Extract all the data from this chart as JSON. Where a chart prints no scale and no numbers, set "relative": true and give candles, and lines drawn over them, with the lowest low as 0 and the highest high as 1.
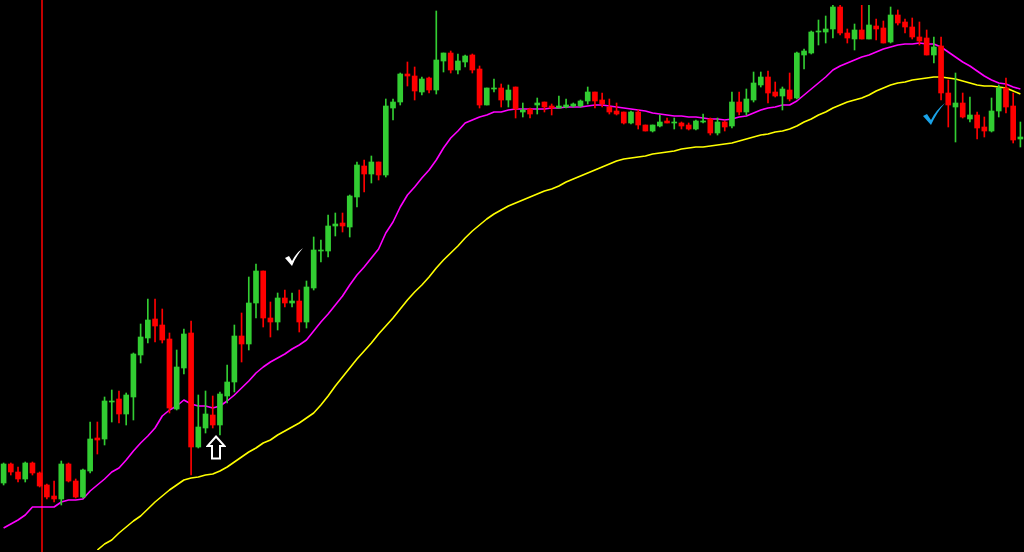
{
  "chart_data": {
    "type": "candlestick",
    "relative": true,
    "categories": [
      null,
      null,
      null,
      null,
      null,
      null,
      null,
      null,
      null,
      null,
      null,
      null,
      null,
      null,
      null,
      null,
      null,
      null,
      null,
      null,
      null,
      null,
      null,
      null,
      null,
      null,
      null,
      null,
      null,
      null,
      null,
      null,
      null,
      null,
      null,
      null,
      null,
      null,
      null,
      null,
      null,
      null,
      null,
      null,
      null,
      null,
      null,
      null,
      null,
      null,
      null,
      null,
      null,
      null,
      null,
      null,
      null,
      null,
      null,
      null,
      null,
      null,
      null,
      null,
      null,
      null,
      null,
      null,
      null,
      null,
      null,
      null,
      null,
      null,
      null,
      null,
      null,
      null,
      null,
      null,
      null,
      null,
      null,
      null,
      null,
      null,
      null,
      null,
      null,
      null,
      null,
      null,
      null,
      null,
      null,
      null,
      null,
      null,
      null,
      null,
      null,
      null,
      null,
      null,
      null,
      null,
      null,
      null,
      null,
      null,
      null,
      null,
      null,
      null,
      null,
      null,
      null,
      null,
      null,
      null,
      null,
      null,
      null,
      null,
      null,
      null,
      null,
      null,
      null,
      null,
      null,
      null,
      null,
      null,
      null,
      null,
      null,
      null,
      null,
      null,
      null,
      null
    ],
    "ohlc": [
      [
        0.044,
        0.084,
        0.04,
        0.082
      ],
      [
        0.082,
        0.084,
        0.06,
        0.066
      ],
      [
        0.066,
        0.076,
        0.046,
        0.052
      ],
      [
        0.052,
        0.086,
        0.046,
        0.084
      ],
      [
        0.084,
        0.086,
        0.06,
        0.064
      ],
      [
        0.064,
        0.066,
        0.036,
        0.038
      ],
      [
        0.04,
        0.042,
        0.012,
        0.016
      ],
      [
        0.018,
        0.048,
        0.006,
        0.012
      ],
      [
        0.012,
        0.088,
        0,
        0.082
      ],
      [
        0.082,
        0.084,
        0.046,
        0.048
      ],
      [
        0.048,
        0.052,
        0.014,
        0.016
      ],
      [
        0.016,
        0.072,
        0.014,
        0.07
      ],
      [
        0.068,
        0.166,
        0.064,
        0.132
      ],
      [
        0.134,
        0.166,
        0.102,
        0.13
      ],
      [
        0.132,
        0.216,
        0.12,
        0.208
      ],
      [
        0.206,
        0.23,
        0.166,
        0.208
      ],
      [
        0.212,
        0.228,
        0.164,
        0.182
      ],
      [
        0.182,
        0.224,
        0.16,
        0.22
      ],
      [
        0.216,
        0.304,
        0.17,
        0.302
      ],
      [
        0.3,
        0.362,
        0.284,
        0.336
      ],
      [
        0.334,
        0.412,
        0.324,
        0.37
      ],
      [
        0.372,
        0.412,
        0.326,
        0.358
      ],
      [
        0.36,
        0.392,
        0.324,
        0.33
      ],
      [
        0.332,
        0.344,
        0.184,
        0.194
      ],
      [
        0.192,
        0.31,
        0.19,
        0.276
      ],
      [
        0.274,
        0.352,
        0.262,
        0.342
      ],
      [
        0.344,
        0.368,
        0.06,
        0.116
      ],
      [
        0.116,
        0.22,
        0.114,
        0.156
      ],
      [
        0.154,
        0.228,
        0.144,
        0.182
      ],
      [
        0.18,
        0.218,
        0.154,
        0.16
      ],
      [
        0.16,
        0.226,
        0.14,
        0.222
      ],
      [
        0.218,
        0.28,
        0.204,
        0.246
      ],
      [
        0.246,
        0.36,
        0.226,
        0.338
      ],
      [
        0.338,
        0.384,
        0.286,
        0.322
      ],
      [
        0.322,
        0.456,
        0.31,
        0.404
      ],
      [
        0.404,
        0.482,
        0.374,
        0.468
      ],
      [
        0.468,
        0.468,
        0.356,
        0.374
      ],
      [
        0.374,
        0.406,
        0.336,
        0.366
      ],
      [
        0.366,
        0.424,
        0.35,
        0.414
      ],
      [
        0.414,
        0.43,
        0.396,
        0.404
      ],
      [
        0.404,
        0.424,
        0.396,
        0.408
      ],
      [
        0.408,
        0.43,
        0.346,
        0.366
      ],
      [
        0.366,
        0.448,
        0.354,
        0.436
      ],
      [
        0.434,
        0.536,
        0.43,
        0.51
      ],
      [
        0.508,
        0.53,
        0.486,
        0.51
      ],
      [
        0.508,
        0.58,
        0.496,
        0.558
      ],
      [
        0.558,
        0.584,
        0.538,
        0.562
      ],
      [
        0.564,
        0.584,
        0.546,
        0.558
      ],
      [
        0.556,
        0.62,
        0.536,
        0.618
      ],
      [
        0.616,
        0.686,
        0.596,
        0.68
      ],
      [
        0.678,
        0.69,
        0.626,
        0.662
      ],
      [
        0.662,
        0.698,
        0.644,
        0.686
      ],
      [
        0.686,
        0.686,
        0.65,
        0.66
      ],
      [
        0.66,
        0.812,
        0.656,
        0.798
      ],
      [
        0.794,
        0.812,
        0.77,
        0.806
      ],
      [
        0.806,
        0.864,
        0.8,
        0.862
      ],
      [
        0.862,
        0.886,
        0.838,
        0.858
      ],
      [
        0.858,
        0.876,
        0.81,
        0.828
      ],
      [
        0.826,
        0.856,
        0.82,
        0.852
      ],
      [
        0.854,
        0.856,
        0.824,
        0.83
      ],
      [
        0.83,
        0.988,
        0.822,
        0.89
      ],
      [
        0.888,
        0.904,
        0.866,
        0.904
      ],
      [
        0.904,
        0.908,
        0.864,
        0.87
      ],
      [
        0.87,
        0.902,
        0.862,
        0.888
      ],
      [
        0.886,
        0.9,
        0.876,
        0.898
      ],
      [
        0.9,
        0.902,
        0.864,
        0.87
      ],
      [
        0.872,
        0.878,
        0.794,
        0.8
      ],
      [
        0.8,
        0.834,
        0.8,
        0.834
      ],
      [
        0.832,
        0.852,
        0.826,
        0.834
      ],
      [
        0.834,
        0.842,
        0.796,
        0.81
      ],
      [
        0.81,
        0.84,
        0.796,
        0.83
      ],
      [
        0.836,
        0.836,
        0.774,
        0.792
      ],
      [
        0.786,
        0.804,
        0.776,
        0.79
      ],
      [
        0.792,
        0.794,
        0.774,
        0.782
      ],
      [
        0.8,
        0.814,
        0.782,
        0.804
      ],
      [
        0.806,
        0.806,
        0.786,
        0.796
      ],
      [
        0.798,
        0.802,
        0.78,
        0.794
      ],
      [
        0.794,
        0.818,
        0.794,
        0.798
      ],
      [
        0.796,
        0.812,
        0.794,
        0.8
      ],
      [
        0.798,
        0.804,
        0.796,
        0.802
      ],
      [
        0.798,
        0.81,
        0.796,
        0.808
      ],
      [
        0.808,
        0.836,
        0.802,
        0.826
      ],
      [
        0.826,
        0.826,
        0.794,
        0.808
      ],
      [
        0.81,
        0.824,
        0.796,
        0.802
      ],
      [
        0.796,
        0.812,
        0.782,
        0.786
      ],
      [
        0.788,
        0.804,
        0.78,
        0.782
      ],
      [
        0.786,
        0.786,
        0.762,
        0.764
      ],
      [
        0.764,
        0.788,
        0.762,
        0.786
      ],
      [
        0.786,
        0.79,
        0.752,
        0.76
      ],
      [
        0.76,
        0.76,
        0.748,
        0.748
      ],
      [
        0.748,
        0.76,
        0.746,
        0.76
      ],
      [
        0.758,
        0.78,
        0.756,
        0.766
      ],
      [
        0.768,
        0.774,
        0.764,
        0.764
      ],
      [
        0.764,
        0.774,
        0.752,
        0.766
      ],
      [
        0.764,
        0.766,
        0.752,
        0.758
      ],
      [
        0.76,
        0.764,
        0.75,
        0.752
      ],
      [
        0.752,
        0.77,
        0.75,
        0.768
      ],
      [
        0.766,
        0.782,
        0.764,
        0.768
      ],
      [
        0.772,
        0.774,
        0.74,
        0.744
      ],
      [
        0.744,
        0.774,
        0.74,
        0.766
      ],
      [
        0.766,
        0.768,
        0.748,
        0.756
      ],
      [
        0.758,
        0.826,
        0.754,
        0.806
      ],
      [
        0.806,
        0.826,
        0.78,
        0.786
      ],
      [
        0.786,
        0.832,
        0.78,
        0.812
      ],
      [
        0.81,
        0.866,
        0.806,
        0.844
      ],
      [
        0.84,
        0.866,
        0.836,
        0.856
      ],
      [
        0.856,
        0.868,
        0.804,
        0.824
      ],
      [
        0.826,
        0.846,
        0.816,
        0.818
      ],
      [
        0.818,
        0.836,
        0.79,
        0.832
      ],
      [
        0.83,
        0.864,
        0.808,
        0.812
      ],
      [
        0.814,
        0.906,
        0.812,
        0.904
      ],
      [
        0.9,
        0.912,
        0.872,
        0.908
      ],
      [
        0.904,
        0.948,
        0.902,
        0.946
      ],
      [
        0.946,
        0.97,
        0.92,
        0.948
      ],
      [
        0.946,
        0.978,
        0.924,
        0.952
      ],
      [
        0.952,
        1,
        0.934,
        0.996
      ],
      [
        0.996,
        1,
        0.94,
        0.944
      ],
      [
        0.944,
        0.952,
        0.924,
        0.934
      ],
      [
        0.932,
        0.962,
        0.91,
        0.95
      ],
      [
        0.95,
        1,
        0.932,
        0.932
      ],
      [
        0.932,
        1,
        0.932,
        0.96
      ],
      [
        0.958,
        0.972,
        0.93,
        0.952
      ],
      [
        0.954,
        0.968,
        0.924,
        0.924
      ],
      [
        0.926,
        0.996,
        0.924,
        0.98
      ],
      [
        0.98,
        0.99,
        0.96,
        0.964
      ],
      [
        0.966,
        0.972,
        0.944,
        0.956
      ],
      [
        0.956,
        0.974,
        0.932,
        0.936
      ],
      [
        0.936,
        0.966,
        0.92,
        0.928
      ],
      [
        0.934,
        0.95,
        0.9,
        0.9
      ],
      [
        0.9,
        0.936,
        0.884,
        0.916
      ],
      [
        0.918,
        0.936,
        0.81,
        0.824
      ],
      [
        0.824,
        0.85,
        0.756,
        0.8
      ],
      [
        0.796,
        0.864,
        0.726,
        0.804
      ],
      [
        0.804,
        0.824,
        0.774,
        0.776
      ],
      [
        0.772,
        0.816,
        0.766,
        0.78
      ],
      [
        0.78,
        0.786,
        0.732,
        0.754
      ],
      [
        0.756,
        0.776,
        0.736,
        0.748
      ],
      [
        0.748,
        0.814,
        0.746,
        0.788
      ],
      [
        0.788,
        0.84,
        0.776,
        0.834
      ],
      [
        0.834,
        0.854,
        0.784,
        0.796
      ],
      [
        0.798,
        0.824,
        0.724,
        0.73
      ],
      [
        0.732,
        0.766,
        0.716,
        0.736
      ]
    ],
    "colors": [
      "#32cd32",
      "#ff0000",
      "#ff0000",
      "#32cd32",
      "#ff0000",
      "#ff0000",
      "#ff0000",
      "#ff0000",
      "#32cd32",
      "#ff0000",
      "#ff0000",
      "#32cd32",
      "#32cd32",
      "#ff0000",
      "#32cd32",
      "#32cd32",
      "#ff0000",
      "#32cd32",
      "#32cd32",
      "#32cd32",
      "#32cd32",
      "#ff0000",
      "#ff0000",
      "#ff0000",
      "#32cd32",
      "#32cd32",
      "#ff0000",
      "#32cd32",
      "#32cd32",
      "#ff0000",
      "#32cd32",
      "#32cd32",
      "#32cd32",
      "#ff0000",
      "#32cd32",
      "#32cd32",
      "#ff0000",
      "#ff0000",
      "#32cd32",
      "#ff0000",
      "#32cd32",
      "#ff0000",
      "#32cd32",
      "#32cd32",
      "#32cd32",
      "#32cd32",
      "#32cd32",
      "#ff0000",
      "#32cd32",
      "#32cd32",
      "#ff0000",
      "#32cd32",
      "#ff0000",
      "#32cd32",
      "#32cd32",
      "#32cd32",
      "#ff0000",
      "#ff0000",
      "#32cd32",
      "#ff0000",
      "#32cd32",
      "#32cd32",
      "#ff0000",
      "#32cd32",
      "#32cd32",
      "#ff0000",
      "#ff0000",
      "#32cd32",
      "#32cd32",
      "#ff0000",
      "#32cd32",
      "#ff0000",
      "#32cd32",
      "#ff0000",
      "#32cd32",
      "#ff0000",
      "#ff0000",
      "#32cd32",
      "#32cd32",
      "#32cd32",
      "#32cd32",
      "#32cd32",
      "#ff0000",
      "#ff0000",
      "#ff0000",
      "#ff0000",
      "#ff0000",
      "#32cd32",
      "#ff0000",
      "#ff0000",
      "#32cd32",
      "#32cd32",
      "#ff0000",
      "#32cd32",
      "#ff0000",
      "#ff0000",
      "#32cd32",
      "#32cd32",
      "#ff0000",
      "#32cd32",
      "#ff0000",
      "#32cd32",
      "#ff0000",
      "#32cd32",
      "#32cd32",
      "#32cd32",
      "#ff0000",
      "#ff0000",
      "#32cd32",
      "#ff0000",
      "#32cd32",
      "#32cd32",
      "#32cd32",
      "#32cd32",
      "#32cd32",
      "#32cd32",
      "#ff0000",
      "#ff0000",
      "#32cd32",
      "#ff0000",
      "#32cd32",
      "#ff0000",
      "#ff0000",
      "#32cd32",
      "#ff0000",
      "#ff0000",
      "#ff0000",
      "#ff0000",
      "#ff0000",
      "#32cd32",
      "#ff0000",
      "#ff0000",
      "#32cd32",
      "#ff0000",
      "#32cd32",
      "#ff0000",
      "#ff0000",
      "#32cd32",
      "#32cd32",
      "#ff0000",
      "#ff0000",
      "#32cd32"
    ],
    "series": [
      {
        "type": "line",
        "color": "#ff00ff",
        "values": [
          -0.046,
          -0.038,
          -0.03,
          -0.02,
          -0.004,
          -0.004,
          -0.004,
          -0.004,
          0.006,
          0.01,
          0.01,
          0.012,
          0.028,
          0.04,
          0.052,
          0.066,
          0.074,
          0.09,
          0.108,
          0.124,
          0.138,
          0.154,
          0.178,
          0.19,
          0.198,
          0.21,
          0.202,
          0.198,
          0.198,
          0.194,
          0.198,
          0.208,
          0.22,
          0.234,
          0.248,
          0.264,
          0.276,
          0.286,
          0.294,
          0.302,
          0.312,
          0.32,
          0.33,
          0.348,
          0.366,
          0.382,
          0.4,
          0.418,
          0.44,
          0.46,
          0.476,
          0.494,
          0.512,
          0.544,
          0.566,
          0.596,
          0.62,
          0.636,
          0.654,
          0.67,
          0.69,
          0.714,
          0.734,
          0.748,
          0.764,
          0.77,
          0.776,
          0.78,
          0.786,
          0.786,
          0.79,
          0.792,
          0.792,
          0.792,
          0.792,
          0.792,
          0.794,
          0.794,
          0.796,
          0.796,
          0.796,
          0.798,
          0.8,
          0.8,
          0.798,
          0.796,
          0.794,
          0.792,
          0.79,
          0.788,
          0.784,
          0.782,
          0.78,
          0.778,
          0.778,
          0.776,
          0.776,
          0.774,
          0.772,
          0.772,
          0.77,
          0.772,
          0.776,
          0.778,
          0.784,
          0.79,
          0.794,
          0.796,
          0.8,
          0.8,
          0.808,
          0.82,
          0.832,
          0.844,
          0.856,
          0.87,
          0.878,
          0.884,
          0.89,
          0.896,
          0.9,
          0.906,
          0.912,
          0.916,
          0.92,
          0.922,
          0.922,
          0.924,
          0.922,
          0.922,
          0.916,
          0.906,
          0.896,
          0.886,
          0.878,
          0.868,
          0.858,
          0.85,
          0.844,
          0.842,
          0.836,
          0.832
        ]
      },
      {
        "type": "line",
        "color": "#ffff00",
        "values": [
          null,
          null,
          null,
          null,
          null,
          null,
          null,
          null,
          null,
          null,
          null,
          null,
          null,
          -0.09,
          -0.078,
          -0.07,
          -0.056,
          -0.044,
          -0.032,
          -0.022,
          -0.008,
          0.006,
          0.018,
          0.03,
          0.04,
          0.05,
          0.054,
          0.056,
          0.06,
          0.062,
          0.068,
          0.076,
          0.086,
          0.096,
          0.106,
          0.114,
          0.124,
          0.13,
          0.14,
          0.148,
          0.156,
          0.164,
          0.174,
          0.184,
          0.2,
          0.218,
          0.238,
          0.256,
          0.274,
          0.292,
          0.308,
          0.324,
          0.342,
          0.358,
          0.374,
          0.392,
          0.41,
          0.426,
          0.44,
          0.456,
          0.474,
          0.49,
          0.504,
          0.518,
          0.534,
          0.548,
          0.56,
          0.572,
          0.582,
          0.59,
          0.598,
          0.604,
          0.61,
          0.616,
          0.622,
          0.628,
          0.632,
          0.638,
          0.646,
          0.652,
          0.658,
          0.664,
          0.67,
          0.676,
          0.682,
          0.688,
          0.692,
          0.694,
          0.696,
          0.698,
          0.702,
          0.704,
          0.706,
          0.708,
          0.712,
          0.714,
          0.716,
          0.716,
          0.718,
          0.72,
          0.722,
          0.724,
          0.728,
          0.732,
          0.736,
          0.74,
          0.742,
          0.746,
          0.748,
          0.752,
          0.758,
          0.766,
          0.772,
          0.78,
          0.786,
          0.794,
          0.8,
          0.806,
          0.81,
          0.814,
          0.82,
          0.828,
          0.834,
          0.84,
          0.844,
          0.846,
          0.85,
          0.852,
          0.854,
          0.856,
          0.856,
          0.854,
          0.852,
          0.848,
          0.844,
          0.84,
          0.838,
          0.838,
          0.836,
          0.834,
          0.828,
          0.822
        ]
      }
    ]
  }
}
